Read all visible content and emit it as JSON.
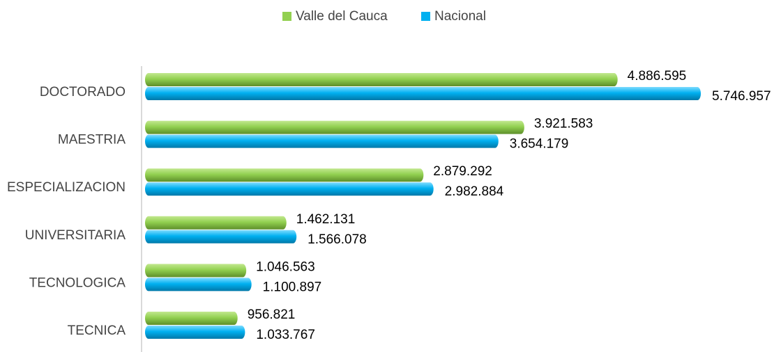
{
  "chart_data": {
    "type": "bar",
    "orientation": "horizontal",
    "categories": [
      "DOCTORADO",
      "MAESTRIA",
      "ESPECIALIZACION",
      "UNIVERSITARIA",
      "TECNOLOGICA",
      "TECNICA"
    ],
    "series": [
      {
        "name": "Valle del Cauca",
        "color": "#92d050",
        "values": [
          4886595,
          3921583,
          2879292,
          1462131,
          1046563,
          956821
        ],
        "value_labels": [
          "4.886.595",
          "3.921.583",
          "2.879.292",
          "1.462.131",
          "1.046.563",
          "956.821"
        ]
      },
      {
        "name": "Nacional",
        "color": "#00b0f0",
        "values": [
          5746957,
          3654179,
          2982884,
          1566078,
          1100897,
          1033767
        ],
        "value_labels": [
          "5.746.957",
          "3.654.179",
          "2.982.884",
          "1.566.078",
          "1.100.897",
          "1.033.767"
        ]
      }
    ],
    "legend": "top"
  }
}
